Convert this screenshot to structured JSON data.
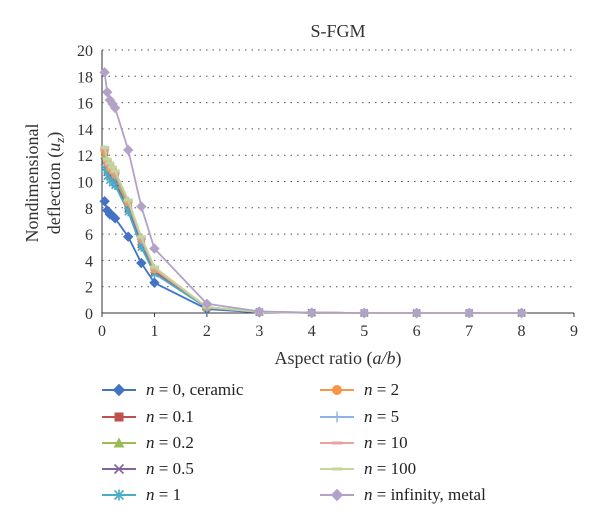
{
  "chart_data": {
    "type": "line",
    "title": "S-FGM",
    "xlabel": "Aspect ratio (a/b)",
    "ylabel_line1": "Nondimensional",
    "ylabel_line2": "deflection (u_z)",
    "xlim": [
      0,
      9
    ],
    "ylim": [
      0,
      20
    ],
    "xticks": [
      0,
      1,
      2,
      3,
      4,
      5,
      6,
      7,
      8,
      9
    ],
    "yticks": [
      0,
      2,
      4,
      6,
      8,
      10,
      12,
      14,
      16,
      18,
      20
    ],
    "grid": "horizontal-dotted",
    "legend_position": "bottom",
    "x": [
      0.05,
      0.1,
      0.15,
      0.2,
      0.25,
      0.5,
      0.75,
      1,
      2,
      3,
      4,
      5,
      6,
      7,
      8
    ],
    "series": [
      {
        "name": "n = 0, ceramic",
        "var": "n",
        "rest": " = 0, ceramic",
        "color": "#4472C4",
        "marker": "diamond",
        "values": [
          8.5,
          7.8,
          7.5,
          7.4,
          7.2,
          5.8,
          3.8,
          2.3,
          0.3,
          0.05,
          0.01,
          0.0,
          0.0,
          0.0,
          0.0
        ]
      },
      {
        "name": "n = 0.1",
        "var": "n",
        "rest": " = 0.1",
        "color": "#C0504D",
        "marker": "square",
        "values": [
          12.2,
          11.0,
          10.6,
          10.4,
          10.1,
          8.0,
          5.3,
          3.2,
          0.4,
          0.07,
          0.02,
          0.0,
          0.0,
          0.0,
          0.0
        ]
      },
      {
        "name": "n = 0.2",
        "var": "n",
        "rest": " = 0.2",
        "color": "#9BBB59",
        "marker": "triangle",
        "values": [
          12.0,
          11.1,
          10.8,
          10.5,
          10.2,
          8.2,
          5.4,
          3.3,
          0.45,
          0.08,
          0.02,
          0.0,
          0.0,
          0.0,
          0.0
        ]
      },
      {
        "name": "n = 0.5",
        "var": "n",
        "rest": " = 0.5",
        "color": "#8064A2",
        "marker": "x",
        "values": [
          11.5,
          10.7,
          10.4,
          10.2,
          9.9,
          7.9,
          5.2,
          3.1,
          0.4,
          0.07,
          0.02,
          0.0,
          0.0,
          0.0,
          0.0
        ]
      },
      {
        "name": "n = 1",
        "var": "n",
        "rest": " = 1",
        "color": "#4BACC6",
        "marker": "star",
        "values": [
          11.0,
          10.4,
          10.1,
          9.9,
          9.7,
          7.7,
          5.0,
          3.0,
          0.4,
          0.07,
          0.02,
          0.0,
          0.0,
          0.0,
          0.0
        ]
      },
      {
        "name": "n = 2",
        "var": "n",
        "rest": " = 2",
        "color": "#F79646",
        "marker": "circle",
        "values": [
          12.3,
          11.4,
          11.0,
          10.8,
          10.5,
          8.4,
          5.6,
          3.3,
          0.45,
          0.08,
          0.02,
          0.0,
          0.0,
          0.0,
          0.0
        ]
      },
      {
        "name": "n = 5",
        "var": "n",
        "rest": " = 5",
        "color": "#8EB4E3",
        "marker": "plus",
        "values": [
          12.4,
          11.5,
          11.2,
          10.9,
          10.6,
          8.5,
          5.6,
          3.4,
          0.45,
          0.08,
          0.02,
          0.0,
          0.0,
          0.0,
          0.0
        ]
      },
      {
        "name": "n = 10",
        "var": "n",
        "rest": " = 10",
        "color": "#E6A3A0",
        "marker": "dash",
        "values": [
          12.5,
          11.6,
          11.3,
          11.0,
          10.7,
          8.5,
          5.7,
          3.4,
          0.45,
          0.08,
          0.02,
          0.0,
          0.0,
          0.0,
          0.0
        ]
      },
      {
        "name": "n = 100",
        "var": "n",
        "rest": " = 100",
        "color": "#C3D69B",
        "marker": "dash",
        "values": [
          12.6,
          11.7,
          11.4,
          11.1,
          10.8,
          8.6,
          5.8,
          3.5,
          0.45,
          0.08,
          0.02,
          0.0,
          0.0,
          0.0,
          0.0
        ]
      },
      {
        "name": "n = infinity, metal",
        "var": "n",
        "rest": " = infinity, metal",
        "color": "#B3A2C7",
        "marker": "diamond",
        "values": [
          18.3,
          16.8,
          16.2,
          15.9,
          15.6,
          12.4,
          8.1,
          4.9,
          0.7,
          0.12,
          0.03,
          0.0,
          0.0,
          0.0,
          0.0
        ]
      }
    ]
  }
}
